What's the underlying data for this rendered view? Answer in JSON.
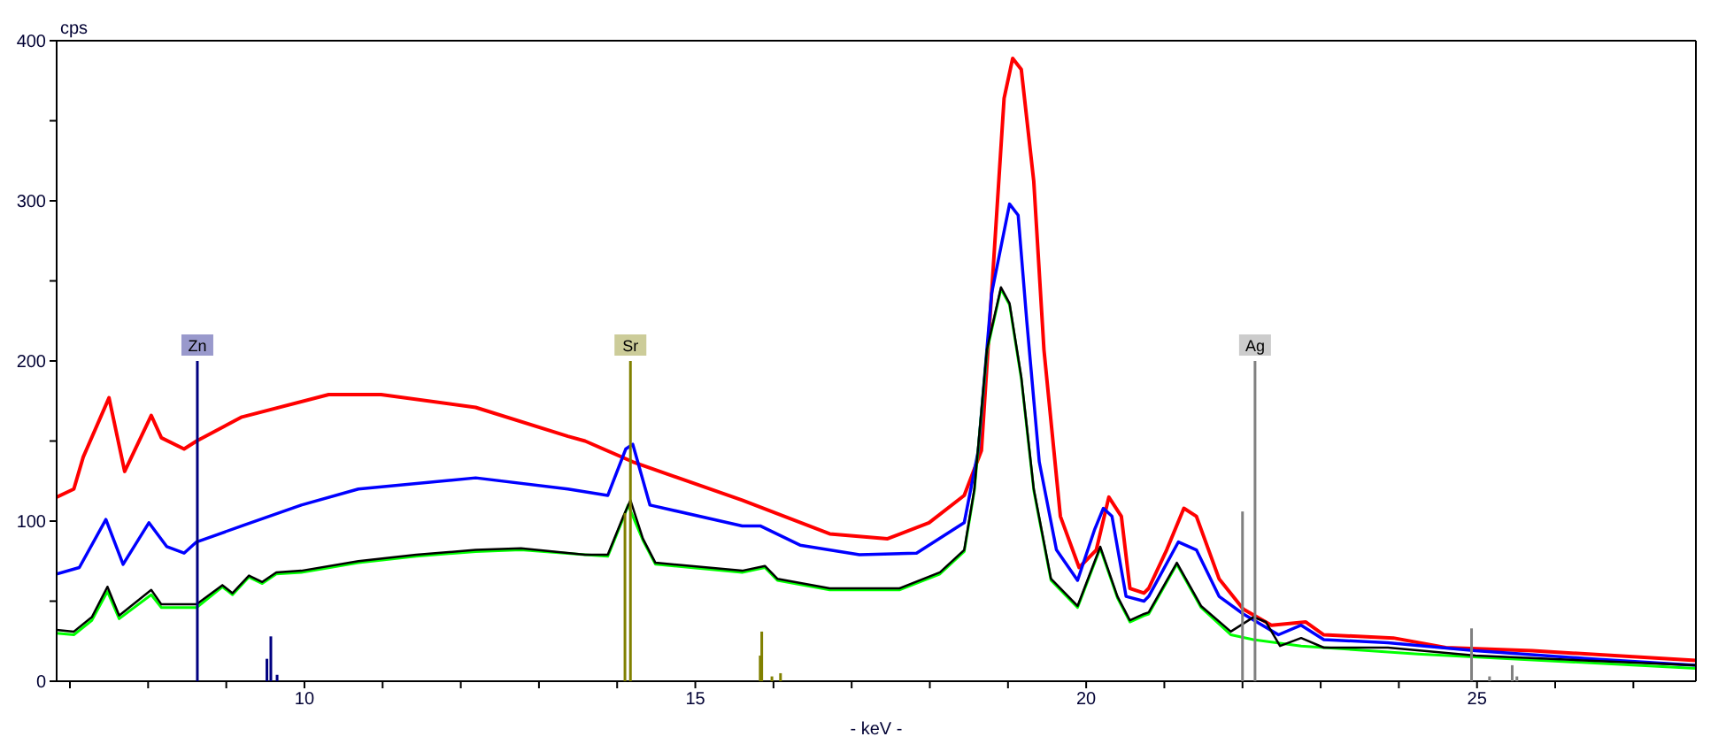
{
  "chart_data": {
    "type": "line",
    "ylabel": "cps",
    "xlabel": "- keV -",
    "xlim": [
      6.83,
      27.8
    ],
    "xticks": [
      {
        "value": 7,
        "label": null
      },
      {
        "value": 8,
        "label": null
      },
      {
        "value": 9,
        "label": null
      },
      10,
      {
        "value": 11,
        "label": null
      },
      {
        "value": 12,
        "label": null
      },
      {
        "value": 13,
        "label": null
      },
      {
        "value": 14,
        "label": null
      },
      15,
      {
        "value": 16,
        "label": null
      },
      {
        "value": 17,
        "label": null
      },
      {
        "value": 18,
        "label": null
      },
      {
        "value": 19,
        "label": null
      },
      20,
      {
        "value": 21,
        "label": null
      },
      {
        "value": 22,
        "label": null
      },
      {
        "value": 23,
        "label": null
      },
      {
        "value": 24,
        "label": null
      },
      25,
      {
        "value": 26,
        "label": null
      },
      {
        "value": 27,
        "label": null
      }
    ],
    "ylim": [
      0,
      400
    ],
    "yticks": [
      0,
      {
        "value": 50,
        "label": null
      },
      100,
      {
        "value": 150,
        "label": null
      },
      200,
      {
        "value": 250,
        "label": null
      },
      300,
      {
        "value": 350,
        "label": null
      },
      400
    ],
    "marker": "none",
    "line_style": "solid",
    "series": [
      {
        "color": "#ff0000",
        "x": [
          6.83,
          7.05,
          7.17,
          7.5,
          7.7,
          8.04,
          8.17,
          8.46,
          8.62,
          9.2,
          10.31,
          10.98,
          12.19,
          13.37,
          13.59,
          14.2,
          15.6,
          16.72,
          17.46,
          17.99,
          18.44,
          18.66,
          18.79,
          18.95,
          19.06,
          19.17,
          19.33,
          19.46,
          19.67,
          19.91,
          20.13,
          20.29,
          20.45,
          20.56,
          20.74,
          20.8,
          21.03,
          21.25,
          21.41,
          21.7,
          22.01,
          22.37,
          22.81,
          23.04,
          23.93,
          24.6,
          25.71,
          27.8
        ],
        "values": [
          115,
          120,
          140,
          177,
          131,
          166,
          152,
          145,
          150,
          165,
          179,
          179,
          171,
          153,
          150,
          137,
          113,
          92,
          89,
          99,
          116,
          144,
          242,
          364,
          389,
          382,
          312,
          207,
          103,
          71,
          82,
          115,
          103,
          58,
          55,
          58,
          82,
          108,
          103,
          64,
          45,
          35,
          37,
          29,
          27,
          21,
          19,
          13
        ]
      },
      {
        "color": "#0000ff",
        "x": [
          6.83,
          7.12,
          7.46,
          7.68,
          8.01,
          8.24,
          8.46,
          8.62,
          9.2,
          9.96,
          10.69,
          12.19,
          13.37,
          13.88,
          14.11,
          14.2,
          14.42,
          15.6,
          15.83,
          16.34,
          17.1,
          17.83,
          18.44,
          18.62,
          18.79,
          19.02,
          19.13,
          19.24,
          19.4,
          19.62,
          19.89,
          20.11,
          20.22,
          20.33,
          20.51,
          20.74,
          20.8,
          21.18,
          21.41,
          21.7,
          22.01,
          22.46,
          22.75,
          23.04,
          23.86,
          24.98,
          26.47,
          27.8
        ],
        "values": [
          67,
          71,
          101,
          73,
          99,
          84,
          80,
          87,
          97,
          110,
          120,
          127,
          120,
          116,
          145,
          148,
          110,
          97,
          97,
          85,
          79,
          80,
          99,
          144,
          242,
          298,
          291,
          225,
          137,
          82,
          63,
          95,
          108,
          103,
          53,
          50,
          53,
          87,
          82,
          53,
          42,
          29,
          35,
          26,
          24,
          19,
          14,
          10
        ]
      },
      {
        "color": "#00ff00",
        "x": [
          6.83,
          7.05,
          7.28,
          7.48,
          7.63,
          8.04,
          8.17,
          8.62,
          8.95,
          9.08,
          9.29,
          9.46,
          9.64,
          9.96,
          10.69,
          11.43,
          12.19,
          12.77,
          13.59,
          13.88,
          14.08,
          14.14,
          14.33,
          14.49,
          15.6,
          15.89,
          16.05,
          16.72,
          17.61,
          18.13,
          18.44,
          18.57,
          18.73,
          18.91,
          19.02,
          19.17,
          19.33,
          19.55,
          19.89,
          20.18,
          20.4,
          20.56,
          20.74,
          20.8,
          21.16,
          21.47,
          21.85,
          22.14,
          22.75,
          24.24,
          27.8
        ],
        "values": [
          30,
          29,
          38,
          56,
          39,
          54,
          46,
          46,
          59,
          54,
          65,
          61,
          67,
          68,
          74,
          78,
          81,
          82,
          79,
          78,
          102,
          110,
          88,
          73,
          68,
          71,
          63,
          57,
          57,
          67,
          81,
          119,
          206,
          245,
          235,
          189,
          119,
          63,
          46,
          83,
          52,
          37,
          41,
          42,
          73,
          46,
          29,
          26,
          22,
          17,
          8
        ]
      },
      {
        "color": "#000000",
        "x": [
          6.83,
          7.05,
          7.28,
          7.48,
          7.63,
          8.04,
          8.17,
          8.62,
          8.95,
          9.08,
          9.29,
          9.46,
          9.64,
          9.96,
          10.69,
          11.43,
          12.19,
          12.77,
          13.59,
          13.88,
          14.08,
          14.17,
          14.33,
          14.49,
          15.6,
          15.89,
          16.05,
          16.72,
          17.61,
          18.13,
          18.44,
          18.57,
          18.73,
          18.91,
          19.02,
          19.17,
          19.33,
          19.55,
          19.89,
          20.18,
          20.4,
          20.56,
          20.74,
          20.8,
          21.16,
          21.47,
          21.85,
          22.14,
          22.3,
          22.48,
          22.75,
          23.04,
          23.86,
          24.98,
          27.8
        ],
        "values": [
          32,
          31,
          40,
          59,
          41,
          57,
          48,
          48,
          60,
          55,
          66,
          62,
          68,
          69,
          75,
          79,
          82,
          83,
          79,
          79,
          103,
          113,
          89,
          74,
          69,
          72,
          64,
          58,
          58,
          68,
          82,
          120,
          207,
          246,
          236,
          190,
          120,
          64,
          47,
          84,
          53,
          38,
          42,
          43,
          74,
          47,
          31,
          40,
          37,
          22,
          27,
          21,
          21,
          16,
          10
        ]
      },
      {
        "type": "bar",
        "x": [
          8.63,
          9.52,
          9.57,
          9.65,
          14.1,
          14.17,
          15.83,
          15.85,
          15.98,
          16.09,
          22.0,
          22.16,
          24.93,
          25.16,
          25.45,
          25.51
        ],
        "values": [
          200,
          14,
          28,
          4,
          105,
          200,
          16,
          31,
          3,
          5,
          106,
          200,
          33,
          3,
          10,
          3
        ],
        "colors": [
          "#000080",
          "#000080",
          "#000080",
          "#000080",
          "#808000",
          "#808000",
          "#808000",
          "#808000",
          "#808000",
          "#808000",
          "#808080",
          "#808080",
          "#808080",
          "#808080",
          "#808080",
          "#808080"
        ],
        "value_labels": [
          "Zn",
          null,
          null,
          null,
          null,
          "Sr",
          null,
          null,
          null,
          null,
          null,
          "Ag",
          null,
          null,
          null,
          null
        ]
      }
    ]
  }
}
